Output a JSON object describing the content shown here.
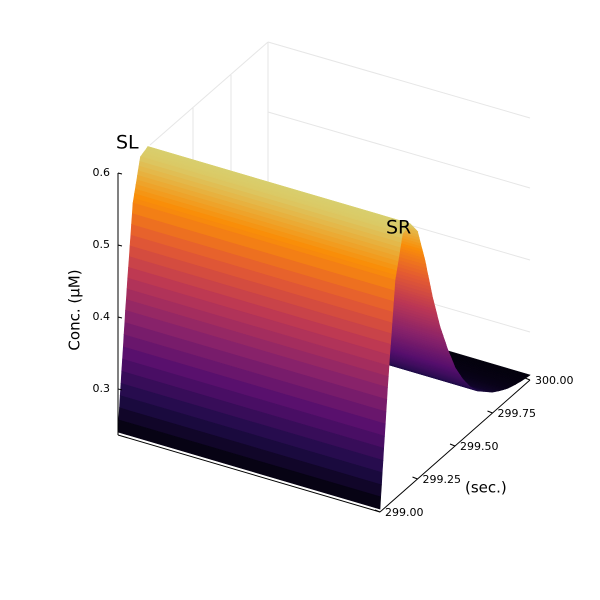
{
  "chart_data": {
    "type": "surface",
    "zlabel": "Conc. (µM)",
    "xlabel": "(sec.)",
    "annotations": [
      "SL",
      "SR"
    ],
    "x": [
      299.0,
      299.05,
      299.1,
      299.15,
      299.2,
      299.25,
      299.3,
      299.35,
      299.4,
      299.45,
      299.5,
      299.55,
      299.6,
      299.65,
      299.7,
      299.75,
      299.8,
      299.85,
      299.9,
      299.95,
      300.0
    ],
    "values": [
      0.24,
      0.4,
      0.54,
      0.595,
      0.6,
      0.58,
      0.53,
      0.47,
      0.42,
      0.38,
      0.345,
      0.32,
      0.3,
      0.285,
      0.275,
      0.265,
      0.258,
      0.252,
      0.248,
      0.245,
      0.243
    ],
    "xlim": [
      299.0,
      300.0
    ],
    "xticks": [
      {
        "value": 299.0,
        "label": "299.00"
      },
      {
        "value": 299.25,
        "label": "299.25"
      },
      {
        "value": 299.5,
        "label": "299.50"
      },
      {
        "value": 299.75,
        "label": "299.75"
      },
      {
        "value": 300.0,
        "label": "300.00"
      }
    ],
    "zlim": [
      0.236,
      0.6
    ],
    "zticks": [
      0.3,
      0.4,
      0.5,
      0.6
    ],
    "colormap": [
      "#000004",
      "#1f0c48",
      "#550f6d",
      "#88226a",
      "#ba3655",
      "#e35933",
      "#f98e09",
      "#d8cf6e"
    ]
  }
}
